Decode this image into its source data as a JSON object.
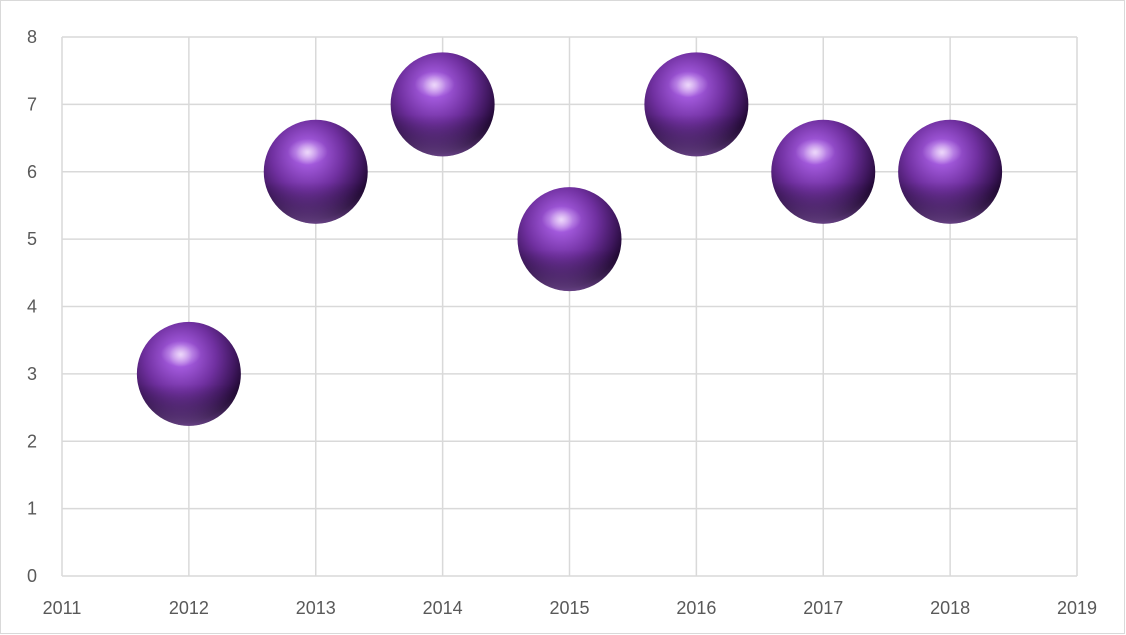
{
  "chart_data": {
    "type": "scatter",
    "subtype": "bubble",
    "title": "",
    "xlabel": "",
    "ylabel": "",
    "xlim": [
      2011,
      2019
    ],
    "ylim": [
      0,
      8
    ],
    "x_ticks": [
      2011,
      2012,
      2013,
      2014,
      2015,
      2016,
      2017,
      2018,
      2019
    ],
    "y_ticks": [
      0,
      1,
      2,
      3,
      4,
      5,
      6,
      7,
      8
    ],
    "grid": true,
    "legend": "none",
    "marker_color": "#7030a0",
    "series": [
      {
        "x": [
          2012,
          2013,
          2014,
          2015,
          2016,
          2017,
          2018
        ],
        "y": [
          3,
          6,
          7,
          5,
          7,
          6,
          6
        ]
      }
    ]
  }
}
